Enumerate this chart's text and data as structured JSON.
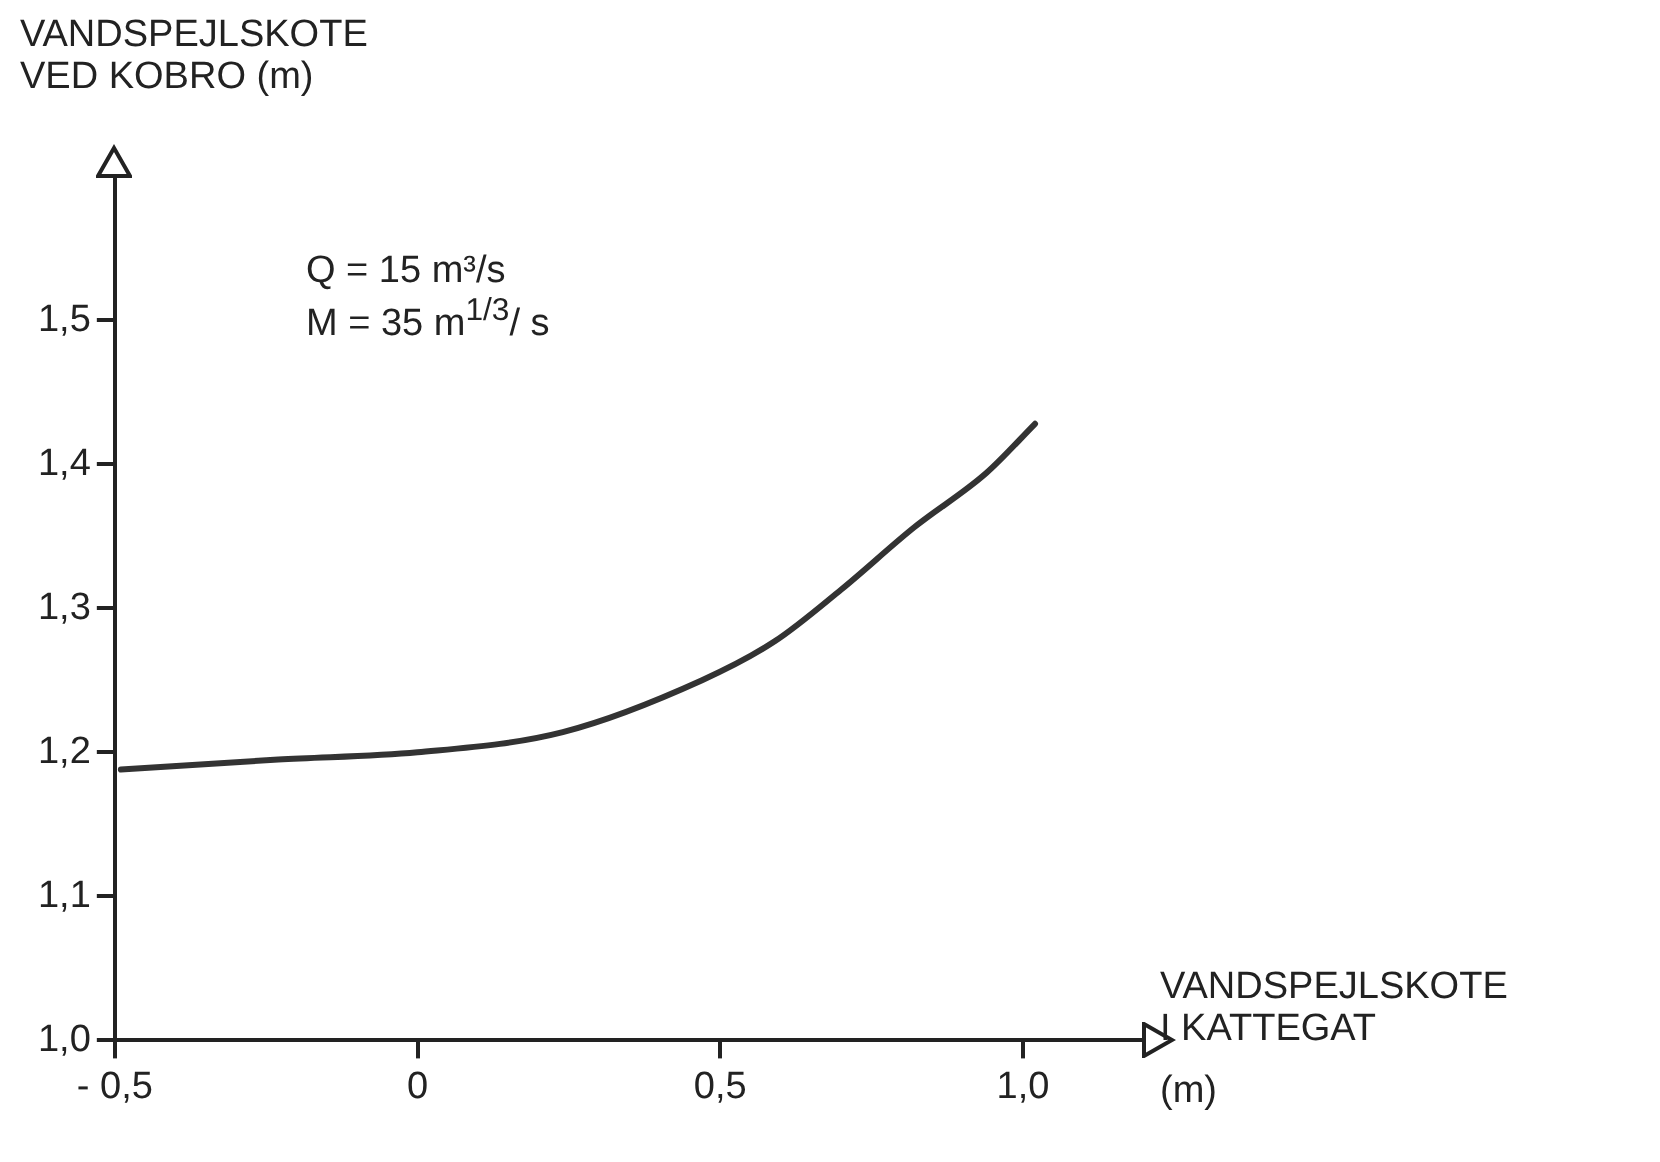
{
  "chart_data": {
    "type": "line",
    "ylabel": "VANDSPEJLSKOTE\nVED KOBRO (m)",
    "xlabel": "VANDSPEJLSKOTE\nI KATTEGAT",
    "x2label": "(m)",
    "annotations": [
      "Q = 15 m³/s",
      "M = 35 m$^{1/3}$/ s"
    ],
    "x": [
      -0.49,
      -0.23,
      0.0,
      0.24,
      0.47,
      0.59,
      0.7,
      0.82,
      0.94,
      1.02
    ],
    "series": [
      {
        "color": "#333333",
        "values": [
          1.188,
          1.195,
          1.2,
          1.214,
          1.25,
          1.277,
          1.313,
          1.356,
          1.394,
          1.428
        ]
      }
    ],
    "xlim": [
      -0.5,
      1.2
    ],
    "ylim": [
      1.0,
      1.6
    ],
    "xticks": [
      {
        "value": -0.5,
        "label": "- 0,5"
      },
      0,
      {
        "value": 0.5,
        "label": "0,5"
      },
      {
        "value": 1,
        "label": "1,0"
      }
    ],
    "yticks": [
      {
        "value": 1,
        "label": "1,0"
      },
      {
        "value": 1.1,
        "label": "1,1"
      },
      {
        "value": 1.2,
        "label": "1,2"
      },
      {
        "value": 1.3,
        "label": "1,3"
      },
      {
        "value": 1.4,
        "label": "1,4"
      },
      {
        "value": 1.5,
        "label": "1,5"
      }
    ],
    "grid": false,
    "legend": false,
    "marker": "none",
    "line_style": "solid"
  }
}
